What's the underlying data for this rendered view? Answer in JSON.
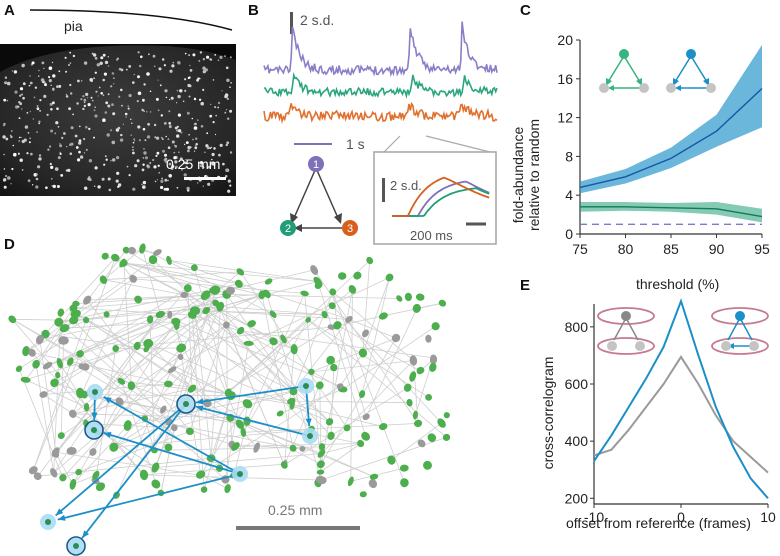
{
  "panels": {
    "A": {
      "label": "A",
      "pia": "pia",
      "scale": "0.25 mm"
    },
    "B": {
      "label": "B",
      "sd_label": "2 s.d.",
      "time_label": "1 s",
      "inset_sd": "2 s.d.",
      "inset_time": "200 ms",
      "nodes": [
        "1",
        "2",
        "3"
      ],
      "colors": {
        "n1": "#7f70b8",
        "n2": "#1f9e77",
        "n3": "#d95f1e"
      }
    },
    "C": {
      "label": "C",
      "ylabel_line1": "fold-abundance",
      "ylabel_line2": "relative to random",
      "xlabel": "threshold (%)"
    },
    "D": {
      "label": "D",
      "scale": "0.25 mm"
    },
    "E": {
      "label": "E",
      "ylabel": "cross-correlogram",
      "xlabel": "offset from reference (frames)"
    }
  },
  "chart_data": [
    {
      "type": "line",
      "panel": "C",
      "title": "",
      "xlabel": "threshold (%)",
      "ylabel": "fold-abundance relative to random",
      "x": [
        75,
        80,
        85,
        90,
        95
      ],
      "xticks": [
        75,
        80,
        85,
        90,
        95
      ],
      "yticks": [
        0,
        4,
        8,
        12,
        16,
        20
      ],
      "xlim": [
        75,
        95
      ],
      "ylim": [
        0,
        20
      ],
      "series": [
        {
          "name": "cyclic triangle (green)",
          "color": "#1f9e77",
          "values": [
            2.8,
            2.8,
            2.7,
            2.6,
            1.8
          ],
          "lower": [
            2.3,
            2.4,
            2.3,
            2.0,
            1.2
          ],
          "upper": [
            3.3,
            3.3,
            3.2,
            3.3,
            2.6
          ]
        },
        {
          "name": "feed-forward triangle (blue)",
          "color": "#1b8fc7",
          "values": [
            4.8,
            5.9,
            7.8,
            10.6,
            15.0
          ],
          "lower": [
            4.2,
            5.2,
            6.8,
            9.0,
            11.0
          ],
          "upper": [
            5.4,
            6.7,
            8.9,
            12.3,
            19.5
          ]
        },
        {
          "name": "random",
          "color": "#7a7ad0",
          "values": [
            1,
            1,
            1,
            1,
            1
          ],
          "dashed": true
        }
      ]
    },
    {
      "type": "line",
      "panel": "E",
      "title": "",
      "xlabel": "offset from reference (frames)",
      "ylabel": "cross-correlogram",
      "x": [
        -10,
        -8,
        -6,
        -4,
        -2,
        0,
        2,
        4,
        6,
        8,
        10
      ],
      "xticks": [
        -10,
        0,
        10
      ],
      "yticks": [
        200,
        400,
        600,
        800
      ],
      "xlim": [
        -10,
        10
      ],
      "ylim": [
        180,
        880
      ],
      "series": [
        {
          "name": "common input (gray)",
          "color": "#9a9a9a",
          "values": [
            350,
            370,
            440,
            520,
            600,
            695,
            600,
            490,
            400,
            345,
            290
          ]
        },
        {
          "name": "feed-forward (blue)",
          "color": "#1b8fc7",
          "values": [
            330,
            420,
            520,
            620,
            730,
            890,
            700,
            520,
            380,
            270,
            200
          ]
        }
      ]
    }
  ]
}
